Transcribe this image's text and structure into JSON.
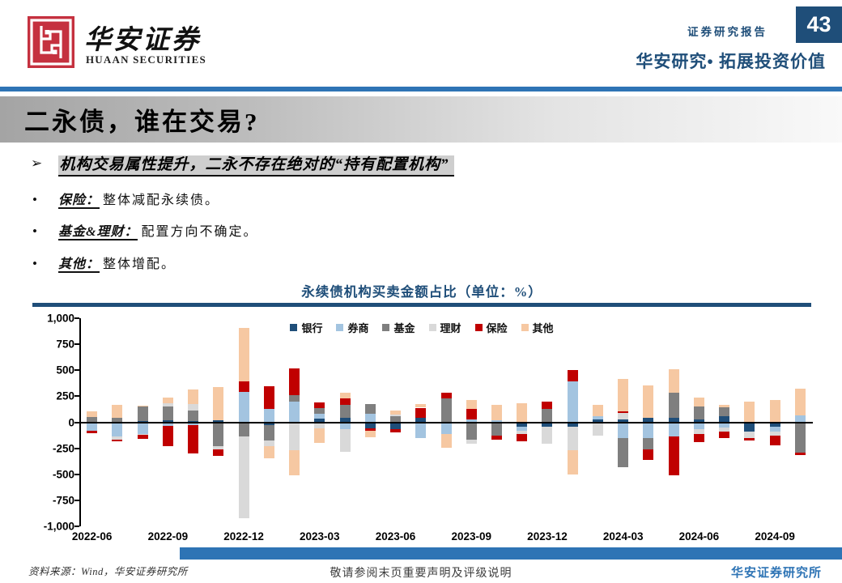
{
  "header": {
    "brand_cn": "华安证券",
    "brand_en": "HUAAN SECURITIES",
    "report_type": "证券研究报告",
    "page_number": "43",
    "slogan": "华安研究• 拓展投资价值"
  },
  "title": "二永债，谁在交易?",
  "bullets": {
    "arrow": "➢",
    "main": "机构交易属性提升，二永不存在绝对的“持有配置机构”",
    "items": [
      {
        "label": "保险：",
        "text": "整体减配永续债。"
      },
      {
        "label": "基金&理财：",
        "text": "配置方向不确定。"
      },
      {
        "label": "其他：",
        "text": "整体增配。"
      }
    ]
  },
  "chart_data": {
    "type": "bar",
    "stacked": true,
    "title": "永续债机构买卖金额占比（单位：%）",
    "legend_position": "top",
    "grid": false,
    "ylim": [
      -1000,
      1000
    ],
    "y_tick_values": [
      1000,
      750,
      500,
      250,
      0,
      -250,
      -500,
      -750,
      -1000
    ],
    "y_tick_labels": [
      "1,000",
      "750",
      "500",
      "250",
      "0",
      "-250",
      "-500",
      "-750",
      "-1,000"
    ],
    "categories": [
      "2022-06",
      "2022-07",
      "2022-08",
      "2022-09",
      "2022-10",
      "2022-11",
      "2022-12",
      "2023-01",
      "2023-02",
      "2023-03",
      "2023-04",
      "2023-05",
      "2023-06",
      "2023-07",
      "2023-08",
      "2023-09",
      "2023-10",
      "2023-11",
      "2023-12",
      "2024-01",
      "2024-02",
      "2024-03",
      "2024-04",
      "2024-05",
      "2024-06",
      "2024-07",
      "2024-08",
      "2024-09",
      "2024-10"
    ],
    "x_tick_indices": [
      0,
      3,
      6,
      9,
      12,
      15,
      18,
      21,
      24,
      27
    ],
    "x_tick_labels": [
      "2022-06",
      "2022-09",
      "2022-12",
      "2023-03",
      "2023-06",
      "2023-09",
      "2023-12",
      "2024-03",
      "2024-06",
      "2024-09"
    ],
    "series": [
      {
        "name": "银行",
        "color": "#1F4E79",
        "values": [
          0,
          0,
          10,
          20,
          15,
          20,
          0,
          -25,
          0,
          35,
          40,
          -60,
          -65,
          45,
          0,
          0,
          0,
          -45,
          -45,
          -45,
          30,
          30,
          40,
          40,
          30,
          60,
          -90,
          -45,
          0
        ]
      },
      {
        "name": "券商",
        "color": "#A3C4E0",
        "values": [
          -85,
          -140,
          -110,
          -35,
          -25,
          0,
          290,
          130,
          195,
          50,
          -65,
          85,
          0,
          -150,
          -115,
          30,
          20,
          -35,
          0,
          395,
          25,
          -150,
          -155,
          -140,
          -70,
          -50,
          0,
          -45,
          70
        ]
      },
      {
        "name": "基金",
        "color": "#7F7F7F",
        "values": [
          50,
          45,
          140,
          135,
          95,
          -230,
          -140,
          -150,
          65,
          55,
          125,
          90,
          60,
          0,
          230,
          -170,
          -130,
          0,
          130,
          0,
          0,
          -280,
          -105,
          245,
          125,
          85,
          0,
          0,
          -295
        ]
      },
      {
        "name": "理财",
        "color": "#D9D9D9",
        "values": [
          0,
          -25,
          -10,
          25,
          65,
          -30,
          -780,
          -55,
          -270,
          -60,
          -220,
          0,
          15,
          0,
          0,
          -40,
          0,
          -35,
          -165,
          -225,
          -125,
          60,
          0,
          0,
          -45,
          -40,
          -65,
          -40,
          0
        ]
      },
      {
        "name": "保险",
        "color": "#C00000",
        "values": [
          -20,
          -15,
          -40,
          -195,
          -275,
          -60,
          100,
          220,
          255,
          50,
          65,
          -20,
          -30,
          95,
          55,
          100,
          -40,
          -70,
          65,
          105,
          0,
          15,
          -105,
          -370,
          -75,
          -65,
          -20,
          -90,
          -20
        ]
      },
      {
        "name": "其他",
        "color": "#F6C8A2",
        "values": [
          55,
          125,
          10,
          60,
          140,
          315,
          520,
          -120,
          -240,
          -140,
          55,
          -65,
          35,
          35,
          -130,
          85,
          145,
          180,
          0,
          -235,
          110,
          310,
          315,
          225,
          80,
          25,
          200,
          215,
          250
        ]
      }
    ]
  },
  "footer": {
    "source": "资料来源：Wind，华安证券研究所",
    "disclaimer": "敬请参阅末页重要声明及评级说明",
    "brand": "华安证券研究所"
  },
  "colors": {
    "accent_blue": "#2E74B5",
    "navy": "#1F4E79",
    "logo_red": "#C5313F",
    "title_bar_gray": "#a4a4a4",
    "highlight_gray": "#cecece"
  }
}
